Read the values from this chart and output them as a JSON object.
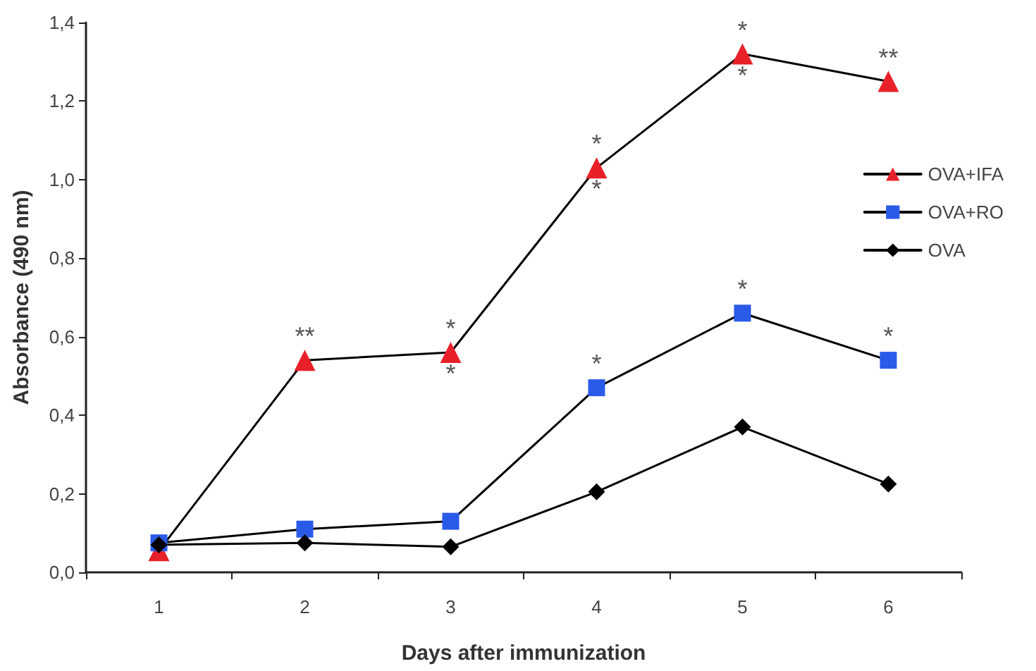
{
  "chart_data": {
    "type": "line",
    "xlabel": "Days after immunization",
    "ylabel": "Absorbance (490 nm)",
    "categories": [
      "1",
      "2",
      "3",
      "4",
      "5",
      "6"
    ],
    "series": [
      {
        "name": "OVA+IFA",
        "color": "#e8202a",
        "marker": "triangle",
        "values": [
          0.055,
          0.54,
          0.56,
          1.03,
          1.32,
          1.25
        ]
      },
      {
        "name": "OVA+RO",
        "color": "#2a5ae8",
        "marker": "square",
        "values": [
          0.075,
          0.11,
          0.13,
          0.47,
          0.66,
          0.54
        ]
      },
      {
        "name": "OVA",
        "color": "#000000",
        "marker": "diamond",
        "values": [
          0.07,
          0.075,
          0.065,
          0.205,
          0.37,
          0.225
        ]
      }
    ],
    "ylim": [
      0,
      1.4
    ],
    "yticks": [
      {
        "value": 0,
        "label": "0,0"
      },
      {
        "value": 0.2,
        "label": "0,2"
      },
      {
        "value": 0.4,
        "label": "0,4"
      },
      {
        "value": 0.6,
        "label": "0,6"
      },
      {
        "value": 0.8,
        "label": "0,8"
      },
      {
        "value": 1,
        "label": "1,0"
      },
      {
        "value": 1.2,
        "label": "1,2"
      },
      {
        "value": 1.4,
        "label": "1,4"
      }
    ],
    "annotations": [
      {
        "text": "**",
        "x": "2",
        "y": 0.54
      },
      {
        "text": "*",
        "x": "3",
        "y": 0.56
      },
      {
        "text": "*",
        "x": "3",
        "y": 0.56
      },
      {
        "text": "*",
        "x": "4",
        "y": 1.03
      },
      {
        "text": "*",
        "x": "4",
        "y": 1.03
      },
      {
        "text": "*",
        "x": "5",
        "y": 1.32
      },
      {
        "text": "*",
        "x": "5",
        "y": 1.32
      },
      {
        "text": "**",
        "x": "6",
        "y": 1.25
      },
      {
        "text": "*",
        "x": "4",
        "y": 0.47
      },
      {
        "text": "*",
        "x": "5",
        "y": 0.66
      },
      {
        "text": "*",
        "x": "6",
        "y": 0.54
      }
    ],
    "grid": false,
    "legend": "right",
    "line_style": "solid"
  }
}
